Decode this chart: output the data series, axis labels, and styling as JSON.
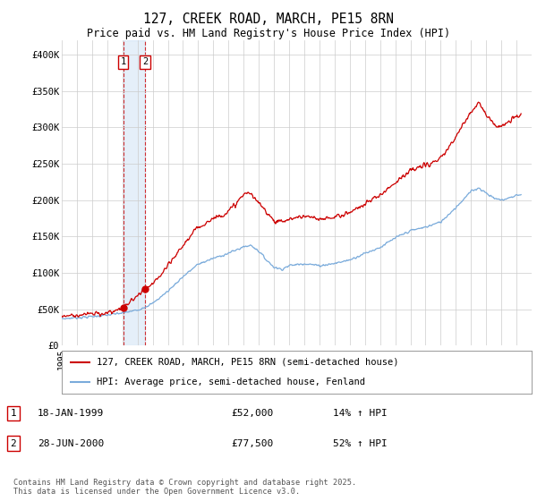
{
  "title": "127, CREEK ROAD, MARCH, PE15 8RN",
  "subtitle": "Price paid vs. HM Land Registry's House Price Index (HPI)",
  "legend_line1": "127, CREEK ROAD, MARCH, PE15 8RN (semi-detached house)",
  "legend_line2": "HPI: Average price, semi-detached house, Fenland",
  "transaction1_label": "1",
  "transaction1_date": "18-JAN-1999",
  "transaction1_price": "£52,000",
  "transaction1_hpi": "14% ↑ HPI",
  "transaction1_year": 1999.05,
  "transaction1_value": 52000,
  "transaction2_label": "2",
  "transaction2_date": "28-JUN-2000",
  "transaction2_price": "£77,500",
  "transaction2_hpi": "52% ↑ HPI",
  "transaction2_year": 2000.5,
  "transaction2_value": 77500,
  "red_line_color": "#cc0000",
  "blue_line_color": "#7aabdb",
  "annotation_box_color": "#cc0000",
  "grid_color": "#cccccc",
  "background_color": "#ffffff",
  "footer_text": "Contains HM Land Registry data © Crown copyright and database right 2025.\nThis data is licensed under the Open Government Licence v3.0.",
  "ylim": [
    0,
    420000
  ],
  "yticks": [
    0,
    50000,
    100000,
    150000,
    200000,
    250000,
    300000,
    350000,
    400000
  ],
  "ytick_labels": [
    "£0",
    "£50K",
    "£100K",
    "£150K",
    "£200K",
    "£250K",
    "£300K",
    "£350K",
    "£400K"
  ],
  "xlim_start": 1995,
  "xlim_end": 2026
}
